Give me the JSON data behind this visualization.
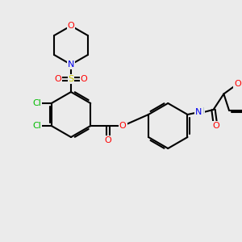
{
  "bg_color": "#ebebeb",
  "atom_colors": {
    "O": "#ff0000",
    "N": "#0000ee",
    "S": "#cccc00",
    "Cl": "#00bb00",
    "C": "#000000",
    "H": "#6a9ab0"
  }
}
